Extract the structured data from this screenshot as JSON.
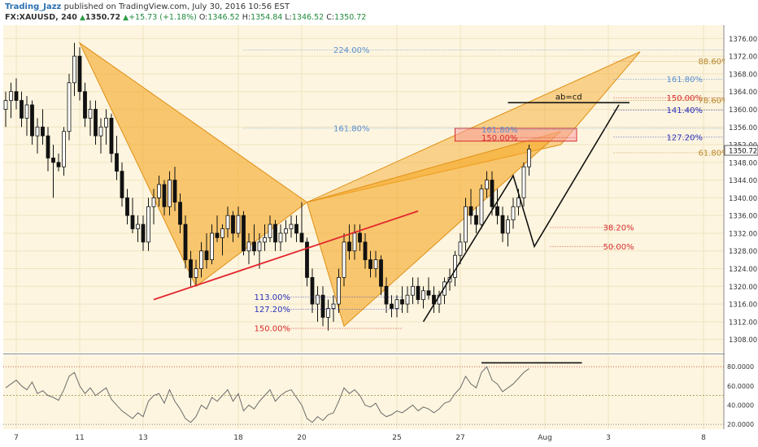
{
  "header": {
    "author": "Trading_Jazz",
    "published": "published on TradingView.com, July 30, 2016 10:56 EST",
    "symbol": "FX:XAUUSD, 240",
    "last": "1350.72",
    "change": "+15.73 (+1.18%)",
    "o_label": "O:",
    "o_value": "1346.52",
    "h_label": "H:",
    "h_value": "1354.84",
    "l_label": "L:",
    "l_value": "1346.52",
    "c_label": "C:",
    "c_value": "1350.72"
  },
  "colors": {
    "background": "#fdf5df",
    "pattern_fill": "#f5a623",
    "bullish_candle": "#ffffff",
    "bearish_candle": "#111111",
    "trendline": "#e3262d",
    "fib_gold": "#b9872c",
    "fib_blue": "#2b2fb8",
    "fib_red": "#d62d2d",
    "fib_lightblue": "#5b8fd0",
    "price_badge": "#ffffff"
  },
  "chart_data": {
    "type": "candlestick",
    "ylim": [
      1305,
      1379
    ],
    "y_ticks": [
      1308,
      1312,
      1316,
      1320,
      1324,
      1328,
      1332,
      1336,
      1340,
      1344,
      1348,
      1352,
      1356,
      1360,
      1364,
      1368,
      1372,
      1376
    ],
    "y_tick_labels": [
      "1308.00",
      "1312.00",
      "1316.00",
      "1320.00",
      "1324.00",
      "1328.00",
      "1332.00",
      "1336.00",
      "1340.00",
      "1344.00",
      "1348.00",
      "1352.00",
      "1356.00",
      "1360.00",
      "1364.00",
      "1368.00",
      "1372.00",
      "1376.00"
    ],
    "x_ticks": [
      {
        "label": "7",
        "bar": 2
      },
      {
        "label": "11",
        "bar": 14
      },
      {
        "label": "13",
        "bar": 26
      },
      {
        "label": "18",
        "bar": 44
      },
      {
        "label": "20",
        "bar": 56
      },
      {
        "label": "25",
        "bar": 74
      },
      {
        "label": "27",
        "bar": 86
      },
      {
        "label": "Aug",
        "bar": 102
      },
      {
        "label": "3",
        "bar": 114
      },
      {
        "label": "8",
        "bar": 132
      }
    ],
    "last_price": "1350.72",
    "last_price_value": 1350.72,
    "grid": true,
    "candles": [
      [
        1360,
        1364,
        1356,
        1362
      ],
      [
        1362,
        1366,
        1358,
        1364
      ],
      [
        1364,
        1367,
        1360,
        1362
      ],
      [
        1362,
        1364,
        1356,
        1358
      ],
      [
        1358,
        1363,
        1354,
        1361
      ],
      [
        1361,
        1362,
        1352,
        1354
      ],
      [
        1354,
        1358,
        1350,
        1356
      ],
      [
        1356,
        1360,
        1352,
        1354
      ],
      [
        1354,
        1356,
        1346,
        1349
      ],
      [
        1349,
        1352,
        1340,
        1348
      ],
      [
        1348,
        1350,
        1346,
        1347
      ],
      [
        1347,
        1356,
        1345,
        1355
      ],
      [
        1355,
        1368,
        1353,
        1366
      ],
      [
        1366,
        1375,
        1363,
        1372
      ],
      [
        1372,
        1374,
        1362,
        1364
      ],
      [
        1364,
        1366,
        1356,
        1358
      ],
      [
        1358,
        1362,
        1354,
        1360
      ],
      [
        1360,
        1362,
        1352,
        1354
      ],
      [
        1354,
        1358,
        1350,
        1356
      ],
      [
        1356,
        1360,
        1352,
        1358
      ],
      [
        1358,
        1359,
        1348,
        1350
      ],
      [
        1350,
        1354,
        1344,
        1346
      ],
      [
        1346,
        1348,
        1338,
        1340
      ],
      [
        1340,
        1342,
        1334,
        1336
      ],
      [
        1336,
        1340,
        1332,
        1333
      ],
      [
        1333,
        1336,
        1330,
        1334
      ],
      [
        1334,
        1336,
        1328,
        1330
      ],
      [
        1330,
        1340,
        1328,
        1338
      ],
      [
        1338,
        1342,
        1334,
        1340
      ],
      [
        1340,
        1345,
        1338,
        1343
      ],
      [
        1343,
        1344,
        1336,
        1338
      ],
      [
        1338,
        1346,
        1336,
        1344
      ],
      [
        1344,
        1347,
        1337,
        1339
      ],
      [
        1339,
        1341,
        1332,
        1334
      ],
      [
        1334,
        1336,
        1324,
        1326
      ],
      [
        1326,
        1328,
        1320,
        1322
      ],
      [
        1322,
        1326,
        1320,
        1324
      ],
      [
        1324,
        1330,
        1322,
        1328
      ],
      [
        1328,
        1332,
        1324,
        1326
      ],
      [
        1326,
        1334,
        1325,
        1332
      ],
      [
        1332,
        1336,
        1330,
        1331
      ],
      [
        1331,
        1334,
        1327,
        1333
      ],
      [
        1333,
        1338,
        1331,
        1336
      ],
      [
        1336,
        1337,
        1330,
        1332
      ],
      [
        1332,
        1338,
        1331,
        1336
      ],
      [
        1336,
        1337,
        1327,
        1328
      ],
      [
        1328,
        1332,
        1325,
        1330
      ],
      [
        1330,
        1334,
        1327,
        1328
      ],
      [
        1328,
        1332,
        1324,
        1330
      ],
      [
        1330,
        1334,
        1328,
        1331
      ],
      [
        1331,
        1336,
        1330,
        1334
      ],
      [
        1334,
        1335,
        1328,
        1330
      ],
      [
        1330,
        1334,
        1328,
        1332
      ],
      [
        1332,
        1335,
        1330,
        1333
      ],
      [
        1333,
        1336,
        1331,
        1334
      ],
      [
        1334,
        1336,
        1330,
        1332
      ],
      [
        1332,
        1339,
        1330,
        1330
      ],
      [
        1330,
        1331,
        1320,
        1322
      ],
      [
        1322,
        1324,
        1314,
        1316
      ],
      [
        1316,
        1320,
        1312,
        1318
      ],
      [
        1318,
        1320,
        1311,
        1313
      ],
      [
        1313,
        1317,
        1310,
        1315
      ],
      [
        1315,
        1318,
        1312,
        1316
      ],
      [
        1316,
        1324,
        1314,
        1322
      ],
      [
        1322,
        1332,
        1320,
        1330
      ],
      [
        1330,
        1334,
        1326,
        1328
      ],
      [
        1328,
        1334,
        1326,
        1332
      ],
      [
        1332,
        1334,
        1328,
        1330
      ],
      [
        1330,
        1332,
        1324,
        1326
      ],
      [
        1326,
        1328,
        1322,
        1324
      ],
      [
        1324,
        1328,
        1322,
        1326
      ],
      [
        1326,
        1327,
        1318,
        1320
      ],
      [
        1320,
        1322,
        1314,
        1316
      ],
      [
        1316,
        1318,
        1313,
        1315
      ],
      [
        1315,
        1318,
        1313,
        1317
      ],
      [
        1317,
        1320,
        1314,
        1316
      ],
      [
        1316,
        1320,
        1314,
        1318
      ],
      [
        1318,
        1322,
        1316,
        1320
      ],
      [
        1320,
        1322,
        1316,
        1317
      ],
      [
        1317,
        1320,
        1315,
        1319
      ],
      [
        1319,
        1322,
        1317,
        1318
      ],
      [
        1318,
        1320,
        1314,
        1316
      ],
      [
        1316,
        1319,
        1314,
        1318
      ],
      [
        1318,
        1322,
        1316,
        1321
      ],
      [
        1321,
        1324,
        1319,
        1322
      ],
      [
        1322,
        1328,
        1320,
        1327
      ],
      [
        1327,
        1332,
        1325,
        1330
      ],
      [
        1330,
        1340,
        1328,
        1338
      ],
      [
        1338,
        1342,
        1334,
        1336
      ],
      [
        1336,
        1338,
        1332,
        1334
      ],
      [
        1334,
        1343,
        1333,
        1342
      ],
      [
        1342,
        1346,
        1340,
        1344
      ],
      [
        1344,
        1346,
        1336,
        1338
      ],
      [
        1338,
        1342,
        1334,
        1336
      ],
      [
        1336,
        1338,
        1330,
        1332
      ],
      [
        1332,
        1336,
        1329,
        1335
      ],
      [
        1335,
        1340,
        1333,
        1338
      ],
      [
        1338,
        1342,
        1336,
        1340
      ],
      [
        1340,
        1348,
        1338,
        1347
      ],
      [
        1347,
        1352,
        1345,
        1351
      ]
    ],
    "rsi": {
      "ylim": [
        15,
        92
      ],
      "y_ticks": [
        20,
        40,
        60,
        80
      ],
      "y_tick_labels": [
        "20.0000",
        "40.0000",
        "60.0000",
        "80.0000"
      ],
      "overbought": 80,
      "oversold": 20,
      "midline": 50,
      "values": [
        58,
        62,
        66,
        60,
        56,
        64,
        52,
        55,
        50,
        48,
        45,
        56,
        70,
        74,
        60,
        52,
        58,
        50,
        54,
        58,
        46,
        40,
        34,
        30,
        26,
        32,
        28,
        44,
        50,
        52,
        42,
        56,
        44,
        36,
        26,
        22,
        28,
        40,
        36,
        48,
        44,
        50,
        56,
        44,
        52,
        34,
        40,
        36,
        44,
        50,
        56,
        44,
        50,
        54,
        56,
        48,
        40,
        26,
        22,
        28,
        24,
        30,
        32,
        44,
        58,
        52,
        56,
        50,
        40,
        38,
        42,
        32,
        28,
        30,
        34,
        32,
        36,
        40,
        34,
        38,
        36,
        32,
        36,
        42,
        44,
        52,
        58,
        70,
        62,
        58,
        74,
        80,
        66,
        62,
        54,
        58,
        62,
        68,
        74,
        78
      ]
    },
    "annotations": [
      {
        "text": "224.00%",
        "kind": "fib_lightblue",
        "level": 1373.4,
        "from_bar": 45,
        "to_bar": 148,
        "label_bar": 62
      },
      {
        "text": "88.60%",
        "kind": "fib_gold",
        "level": 1370.8,
        "from_bar": 115,
        "to_bar": 148,
        "label_bar": 131
      },
      {
        "text": "161.80%",
        "kind": "fib_lightblue",
        "level": 1366.8,
        "from_bar": 115,
        "to_bar": 148,
        "label_bar": 125
      },
      {
        "text": "150.00%",
        "kind": "fib_red",
        "level": 1362.6,
        "from_bar": 115,
        "to_bar": 148,
        "label_bar": 125
      },
      {
        "text": "78.60%",
        "kind": "fib_gold",
        "level": 1362.0,
        "from_bar": 115,
        "to_bar": 148,
        "label_bar": 131
      },
      {
        "text": "141.40%",
        "kind": "fib_blue",
        "level": 1359.8,
        "from_bar": 115,
        "to_bar": 148,
        "label_bar": 125
      },
      {
        "text": "161.80%",
        "kind": "fib_lightblue",
        "level": 1355.7,
        "from_bar": 45,
        "to_bar": 148,
        "label_bar": 62
      },
      {
        "text": "161.80%",
        "kind": "fib_lightblue",
        "level": 1355.4,
        "from_bar": 95,
        "to_bar": 108,
        "label_bar": 90
      },
      {
        "text": "150.00%",
        "kind": "fib_red",
        "level": 1353.6,
        "from_bar": 95,
        "to_bar": 108,
        "label_bar": 90
      },
      {
        "text": "127.20%",
        "kind": "fib_blue",
        "level": 1353.7,
        "from_bar": 115,
        "to_bar": 148,
        "label_bar": 125
      },
      {
        "text": "61.80%",
        "kind": "fib_gold",
        "level": 1350.2,
        "from_bar": 115,
        "to_bar": 148,
        "label_bar": 131
      },
      {
        "text": "38.20%",
        "kind": "fib_red",
        "level": 1333.3,
        "from_bar": 103,
        "to_bar": 116,
        "label_bar": 113
      },
      {
        "text": "50.00%",
        "kind": "fib_red",
        "level": 1329.0,
        "from_bar": 103,
        "to_bar": 116,
        "label_bar": 113
      },
      {
        "text": "113.00%",
        "kind": "fib_blue",
        "level": 1317.6,
        "from_bar": 53,
        "to_bar": 75,
        "label_bar": 47
      },
      {
        "text": "127.20%",
        "kind": "fib_blue",
        "level": 1314.8,
        "from_bar": 53,
        "to_bar": 75,
        "label_bar": 47
      },
      {
        "text": "150.00%",
        "kind": "fib_red",
        "level": 1310.5,
        "from_bar": 53,
        "to_bar": 75,
        "label_bar": 47
      }
    ],
    "ab_cd_label": "ab=cd",
    "pattern_1": [
      [
        14,
        1375
      ],
      [
        36,
        1320
      ],
      [
        57,
        1339
      ],
      [
        36,
        1320
      ]
    ],
    "pattern_1_triangles": [
      [
        [
          14,
          1375
        ],
        [
          36,
          1320
        ],
        [
          57,
          1339
        ]
      ],
      [
        [
          57,
          1339
        ],
        [
          64,
          1311
        ],
        [
          105,
          1355
        ]
      ]
    ],
    "pattern_large": [
      [
        57,
        1339
      ],
      [
        120,
        1373
      ],
      [
        105,
        1352
      ]
    ],
    "trendline": [
      [
        28,
        1317
      ],
      [
        78,
        1337
      ]
    ],
    "abcd_path": [
      [
        79,
        1312
      ],
      [
        96,
        1345
      ],
      [
        100,
        1329
      ],
      [
        116,
        1361
      ]
    ],
    "abcd_top": [
      [
        95,
        1361.5
      ],
      [
        118,
        1361.5
      ]
    ],
    "prz_box": {
      "from_bar": 85,
      "to_bar": 108,
      "top": 1355.7,
      "bottom": 1352.8
    },
    "rsi_resistance": {
      "from_bar": 90,
      "to_bar": 109,
      "value": 84
    }
  }
}
